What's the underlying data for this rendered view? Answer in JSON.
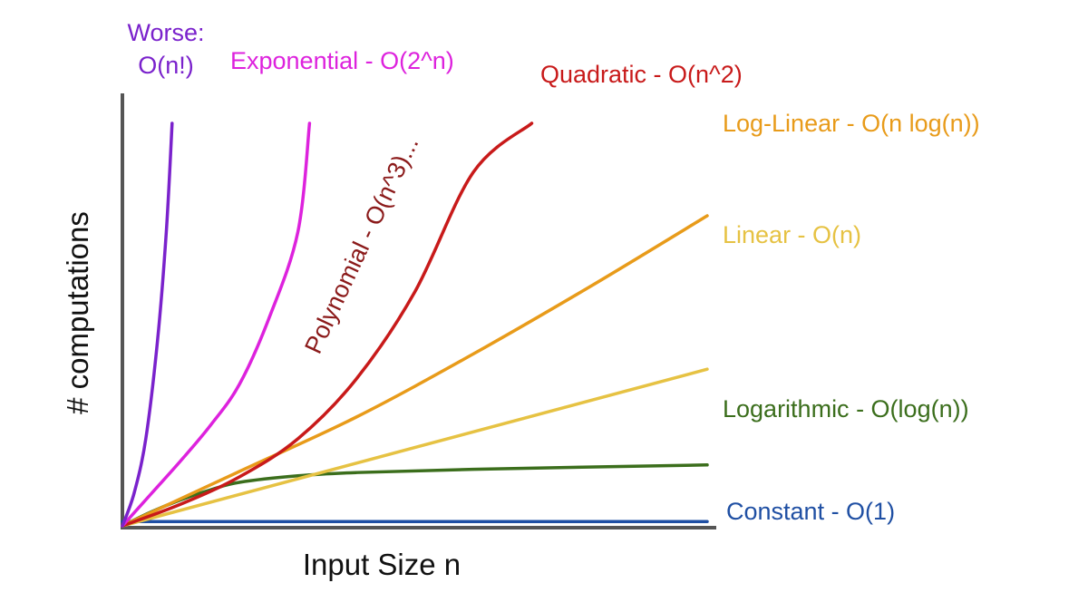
{
  "chart_data": {
    "type": "line",
    "title": "",
    "xlabel": "Input Size n",
    "ylabel": "# computations",
    "grid": false,
    "legend": "labels placed at the end of each curve",
    "series": [
      {
        "name": "Constant - O(1)",
        "color": "#1f4fa3",
        "points": [
          [
            0,
            4
          ],
          [
            10,
            4
          ]
        ]
      },
      {
        "name": "Logarithmic - O(log(n))",
        "color": "#3b6e1c",
        "points": [
          [
            0,
            0
          ],
          [
            0.5,
            13
          ],
          [
            1,
            24
          ],
          [
            1.5,
            33
          ],
          [
            2,
            40
          ],
          [
            3,
            46
          ],
          [
            4,
            49
          ],
          [
            6,
            52
          ],
          [
            10,
            56
          ]
        ]
      },
      {
        "name": "Linear - O(n)",
        "color": "#e6c243",
        "points": [
          [
            0,
            0
          ],
          [
            10,
            144
          ]
        ]
      },
      {
        "name": "Log-Linear - O(n log(n))",
        "color": "#e89b1a",
        "points": [
          [
            0,
            0
          ],
          [
            2,
            50
          ],
          [
            4,
            100
          ],
          [
            6,
            158
          ],
          [
            8,
            220
          ],
          [
            10,
            285
          ]
        ]
      },
      {
        "name": "Quadratic - O(n^2)",
        "color": "#c81a1a",
        "points": [
          [
            0,
            0
          ],
          [
            1,
            20
          ],
          [
            2,
            45
          ],
          [
            3,
            80
          ],
          [
            4,
            135
          ],
          [
            5,
            215
          ],
          [
            6,
            325
          ],
          [
            7,
            370
          ]
        ]
      },
      {
        "name": "Exponential - O(2^n)",
        "color": "#dd22dd",
        "points": [
          [
            0,
            0
          ],
          [
            0.5,
            30
          ],
          [
            1,
            60
          ],
          [
            1.5,
            92
          ],
          [
            2,
            130
          ],
          [
            2.5,
            190
          ],
          [
            3,
            270
          ],
          [
            3.2,
            370
          ]
        ]
      },
      {
        "name": "Worse: O(n!)",
        "color": "#7a22cc",
        "points": [
          [
            0,
            0
          ],
          [
            0.2,
            30
          ],
          [
            0.4,
            80
          ],
          [
            0.6,
            170
          ],
          [
            0.75,
            270
          ],
          [
            0.85,
            370
          ]
        ]
      }
    ],
    "annotations": [
      {
        "text": "Polynomial - O(n^3)...",
        "color": "#8b1a1a"
      }
    ]
  }
}
